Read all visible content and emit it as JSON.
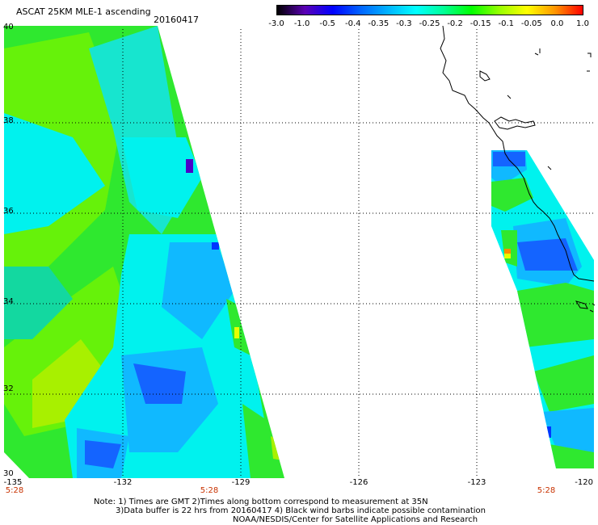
{
  "header": {
    "title": "ASCAT 25KM MLE-1 ascending",
    "date": "20160417"
  },
  "colorbar": {
    "labels": [
      "-3.0",
      "-1.0",
      "-0.5",
      "-0.4",
      "-0.35",
      "-0.3",
      "-0.25",
      "-0.2",
      "-0.15",
      "-0.1",
      "-0.05",
      "0.0",
      "1.0"
    ],
    "colors": [
      "#000000",
      "#5a00b4",
      "#0000ff",
      "#0064ff",
      "#00b4ff",
      "#00ffff",
      "#00ff96",
      "#00ff00",
      "#96ff00",
      "#ffff00",
      "#ff9600",
      "#ff0000"
    ]
  },
  "map": {
    "lat_labels": [
      "40",
      "38",
      "36",
      "34",
      "32",
      "30"
    ],
    "lon_labels": [
      "-135",
      "-132",
      "-129",
      "-126",
      "-123",
      "-120"
    ],
    "times": [
      "5:28",
      "5:28",
      "5:28"
    ],
    "grid_style": "dotted",
    "swath_colors": {
      "green": "#2fe82f",
      "lime": "#66f20a",
      "yellowgreen": "#a8f000",
      "cyan": "#00f2ee",
      "aqua": "#17e5cf",
      "teal": "#13d8a0",
      "skyblue": "#10b9ff",
      "blue": "#1464ff",
      "deepblue": "#0036ff",
      "purple": "#4b00c8",
      "yellow": "#e6ff00",
      "orange": "#ff8c00"
    }
  },
  "notes": {
    "line1": "Note: 1) Times are GMT 2)Times along bottom correspond to measurement at 35N",
    "line2": "3)Data buffer is 22 hrs from 20160417 4) Black wind barbs indicate possible contamination",
    "credit": "NOAA/NESDIS/Center for Satellite Applications and Research"
  }
}
